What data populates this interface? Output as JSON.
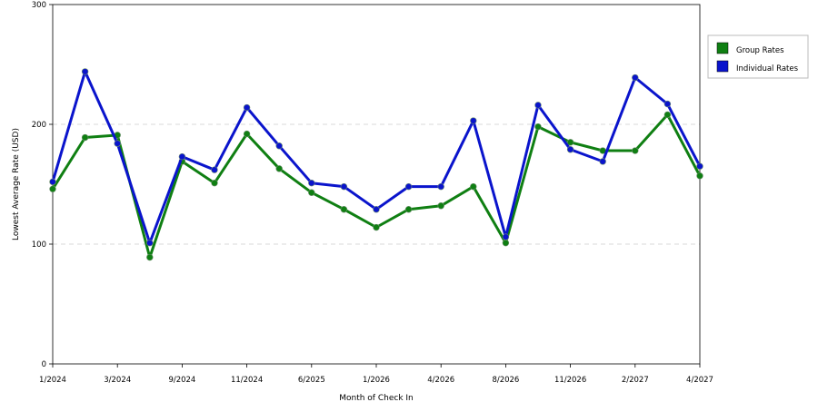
{
  "chart_data": {
    "type": "line",
    "title": "",
    "xlabel": "Month of Check In",
    "ylabel": "Lowest Average Rate (USD)",
    "ylim": [
      0,
      300
    ],
    "yticks": [
      0,
      100,
      200,
      300
    ],
    "grid": "horizontal dashed",
    "legend_position": "top-right",
    "xticks": [
      {
        "index": 0,
        "label": "1/2024"
      },
      {
        "index": 2,
        "label": "3/2024"
      },
      {
        "index": 4,
        "label": "9/2024"
      },
      {
        "index": 6,
        "label": "11/2024"
      },
      {
        "index": 8,
        "label": "6/2025"
      },
      {
        "index": 10,
        "label": "1/2026"
      },
      {
        "index": 12,
        "label": "4/2026"
      },
      {
        "index": 14,
        "label": "8/2026"
      },
      {
        "index": 16,
        "label": "11/2026"
      },
      {
        "index": 18,
        "label": "2/2027"
      },
      {
        "index": 20,
        "label": "4/2027"
      }
    ],
    "series": [
      {
        "name": "Group Rates",
        "color": "#0f7f12",
        "values": [
          146,
          189,
          191,
          89,
          169,
          151,
          192,
          163,
          143,
          129,
          114,
          129,
          132,
          148,
          101,
          198,
          185,
          178,
          178,
          208,
          157
        ]
      },
      {
        "name": "Individual Rates",
        "color": "#0a14cc",
        "values": [
          152,
          244,
          184,
          101,
          173,
          162,
          214,
          182,
          151,
          148,
          129,
          148,
          148,
          203,
          106,
          216,
          179,
          169,
          239,
          217,
          165
        ]
      }
    ]
  }
}
